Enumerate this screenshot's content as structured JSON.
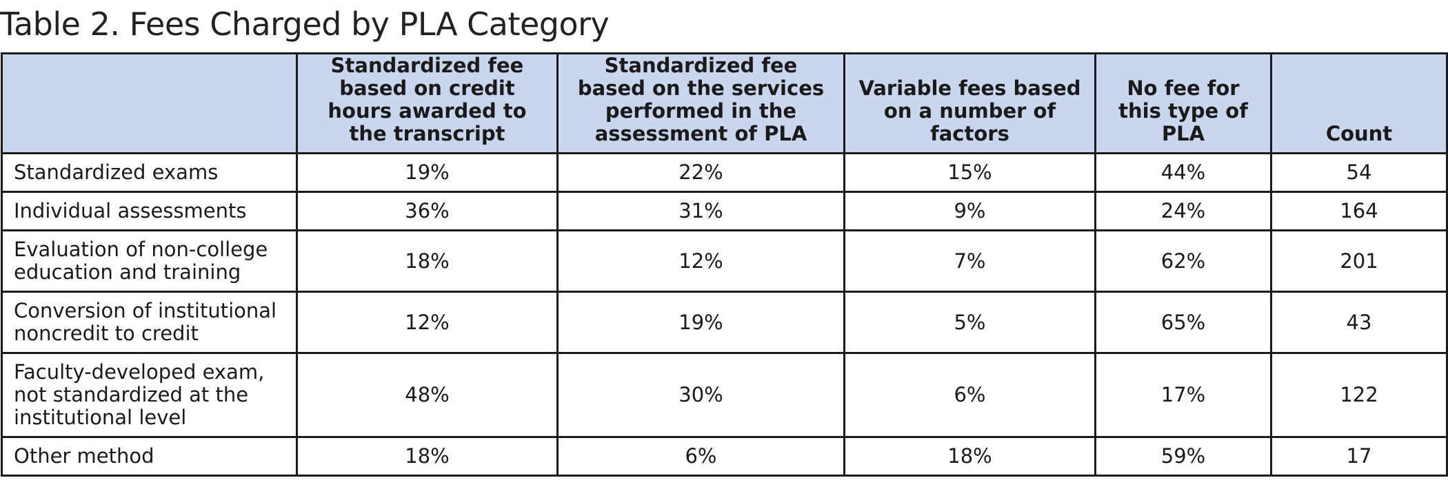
{
  "title": "Table 2. Fees Charged by PLA Category",
  "columns": {
    "category": "",
    "credit_hours": "Standardized fee based on credit hours awarded to the transcript",
    "services": "Standardized fee based on the services performed in the assessment of PLA",
    "variable": "Variable fees based on a number of factors",
    "no_fee": "No fee for this type of PLA",
    "count": "Count"
  },
  "rows": [
    {
      "category": "Standardized exams",
      "credit_hours": "19%",
      "services": "22%",
      "variable": "15%",
      "no_fee": "44%",
      "count": "54"
    },
    {
      "category": "Individual assessments",
      "credit_hours": "36%",
      "services": "31%",
      "variable": "9%",
      "no_fee": "24%",
      "count": "164"
    },
    {
      "category": "Evaluation of non-college education and training",
      "credit_hours": "18%",
      "services": "12%",
      "variable": "7%",
      "no_fee": "62%",
      "count": "201"
    },
    {
      "category": "Conversion of institutional noncredit to credit",
      "credit_hours": "12%",
      "services": "19%",
      "variable": "5%",
      "no_fee": "65%",
      "count": "43"
    },
    {
      "category": "Faculty-developed exam, not standardized at the institutional level",
      "credit_hours": "48%",
      "services": "30%",
      "variable": "6%",
      "no_fee": "17%",
      "count": "122"
    },
    {
      "category": "Other method",
      "credit_hours": "18%",
      "services": "6%",
      "variable": "18%",
      "no_fee": "59%",
      "count": "17"
    }
  ],
  "colors": {
    "header_background": "#c9d6ee",
    "border": "#1a1a1a",
    "text": "#1a1a1a"
  }
}
